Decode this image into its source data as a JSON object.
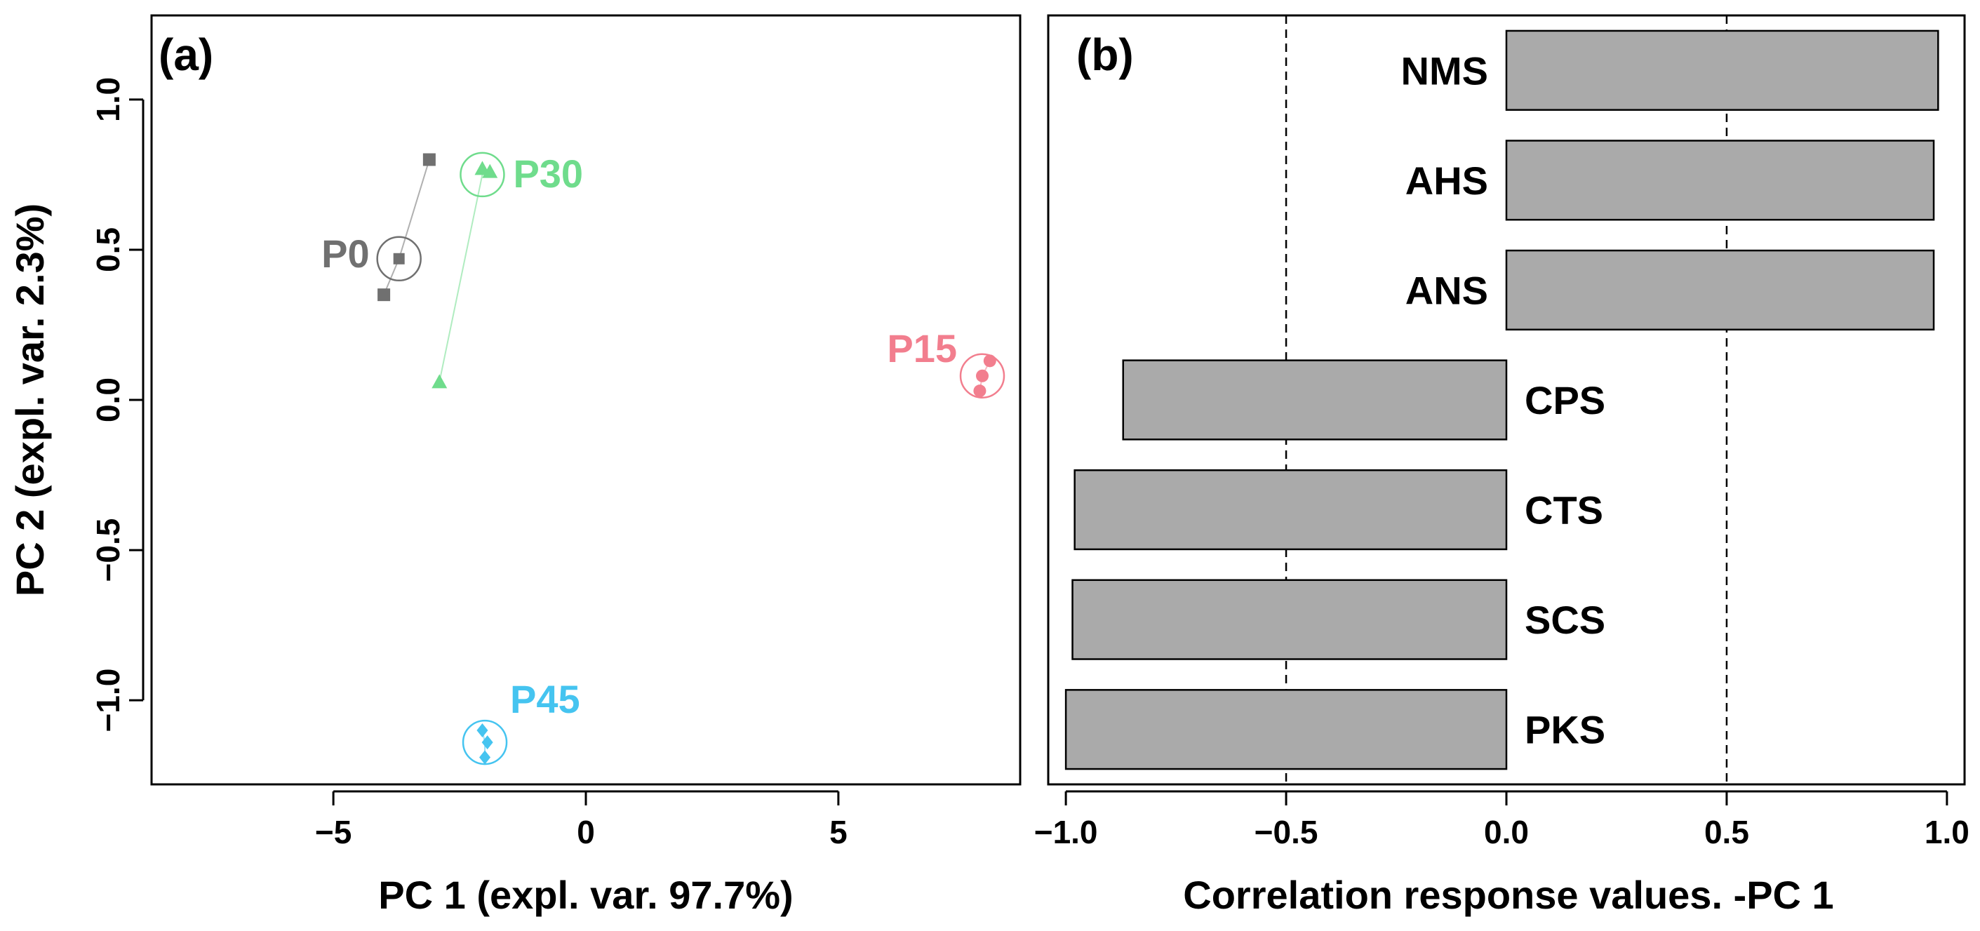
{
  "chart_data": [
    {
      "type": "scatter",
      "panel_label": "(a)",
      "xlabel": "PC 1 (expl. var. 97.7%)",
      "ylabel": "PC 2 (expl. var. 2.3%)",
      "xlim": [
        -8.6,
        8.6
      ],
      "ylim": [
        -1.28,
        1.28
      ],
      "xticks": [
        -5,
        0,
        5
      ],
      "xtick_labels": [
        "−5",
        "0",
        "5"
      ],
      "yticks": [
        -1.0,
        -0.5,
        0.0,
        0.5,
        1.0
      ],
      "ytick_labels": [
        "−1.0",
        "−0.5",
        "0.0",
        "0.5",
        "1.0"
      ],
      "grid": false,
      "series": [
        {
          "name": "P0",
          "color": "#707070",
          "marker": "square",
          "points": [
            [
              -3.1,
              0.8
            ],
            [
              -4.0,
              0.35
            ]
          ],
          "centroid": [
            -3.7,
            0.47
          ]
        },
        {
          "name": "P30",
          "color": "#6fdc8c",
          "marker": "triangle",
          "points": [
            [
              -2.05,
              0.77
            ],
            [
              -1.9,
              0.76
            ],
            [
              -2.9,
              0.06
            ]
          ],
          "centroid": [
            -2.05,
            0.75
          ]
        },
        {
          "name": "P15",
          "color": "#f27e8e",
          "marker": "circle",
          "points": [
            [
              8.0,
              0.13
            ],
            [
              7.85,
              0.08
            ],
            [
              7.8,
              0.03
            ]
          ],
          "centroid": [
            7.85,
            0.08
          ]
        },
        {
          "name": "P45",
          "color": "#45c4f0",
          "marker": "diamond",
          "points": [
            [
              -2.05,
              -1.1
            ],
            [
              -1.95,
              -1.14
            ],
            [
              -2.0,
              -1.19
            ]
          ],
          "centroid": [
            -2.0,
            -1.14
          ]
        }
      ]
    },
    {
      "type": "bar",
      "orientation": "horizontal",
      "panel_label": "(b)",
      "xlabel": "Correlation response values. -PC 1",
      "xlim": [
        -1.04,
        1.04
      ],
      "xticks": [
        -1.0,
        -0.5,
        0.0,
        0.5,
        1.0
      ],
      "xtick_labels": [
        "−1.0",
        "−0.5",
        "0.0",
        "0.5",
        "1.0"
      ],
      "reference_lines": [
        -0.5,
        0.5
      ],
      "bar_color": "#aaaaaa",
      "categories": [
        "NMS",
        "AHS",
        "ANS",
        "CPS",
        "CTS",
        "SCS",
        "PKS"
      ],
      "values": [
        0.98,
        0.97,
        0.97,
        -0.87,
        -0.98,
        -0.985,
        -1.0
      ]
    }
  ]
}
